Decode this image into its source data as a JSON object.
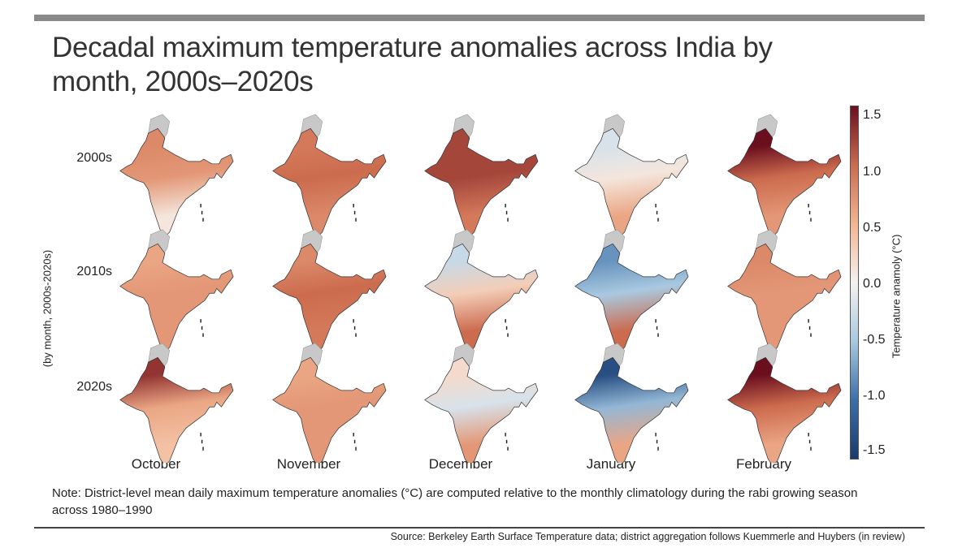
{
  "title": "Decadal maximum temperature anomalies across India by month, 2000s–2020s",
  "note": "Note: District-level mean daily maximum temperature anomalies (°C) are computed relative to the monthly climatology during the rabi growing season across 1980–1990",
  "source": "Source: Berkeley Earth Surface Temperature data; district aggregation follows Kuemmerle and Huybers (in review)",
  "chart_data": {
    "type": "heatmap",
    "subtype": "choropleth small multiples (district map of India)",
    "ylabel": "(by month, 2000s-2020s)",
    "rows": [
      "2000s",
      "2010s",
      "2020s"
    ],
    "columns": [
      "October",
      "November",
      "December",
      "January",
      "February"
    ],
    "regions": [
      "north",
      "central",
      "south"
    ],
    "values": [
      [
        [
          0.8,
          0.7,
          0.1
        ],
        [
          0.9,
          1.0,
          0.8
        ],
        [
          1.2,
          1.2,
          0.9
        ],
        [
          -0.2,
          0.1,
          0.6
        ],
        [
          1.5,
          1.0,
          0.7
        ]
      ],
      [
        [
          0.6,
          0.7,
          0.7
        ],
        [
          0.8,
          1.0,
          0.9
        ],
        [
          -0.3,
          0.3,
          1.0
        ],
        [
          -0.8,
          -0.5,
          1.0
        ],
        [
          0.8,
          0.7,
          0.7
        ]
      ],
      [
        [
          1.3,
          0.6,
          0.4
        ],
        [
          0.6,
          0.7,
          0.7
        ],
        [
          0.2,
          -0.2,
          0.7
        ],
        [
          -1.3,
          -0.6,
          0.6
        ],
        [
          1.5,
          1.0,
          0.6
        ]
      ]
    ],
    "no_data_color": "#c8c8c8",
    "colorbar": {
      "label": "Temperature anamoly (°C)",
      "range": [
        -1.5,
        1.5
      ],
      "ticks": [
        "1.5",
        "1.0",
        "0.5",
        "0.0",
        "-0.5",
        "-1.0",
        "-1.5"
      ],
      "colormap": "RdBu_r",
      "colors": [
        "#1b3a6b",
        "#3b6fa8",
        "#a9c9e0",
        "#f5f2f0",
        "#f2b591",
        "#cc6b4e",
        "#6b0f1f"
      ]
    }
  }
}
